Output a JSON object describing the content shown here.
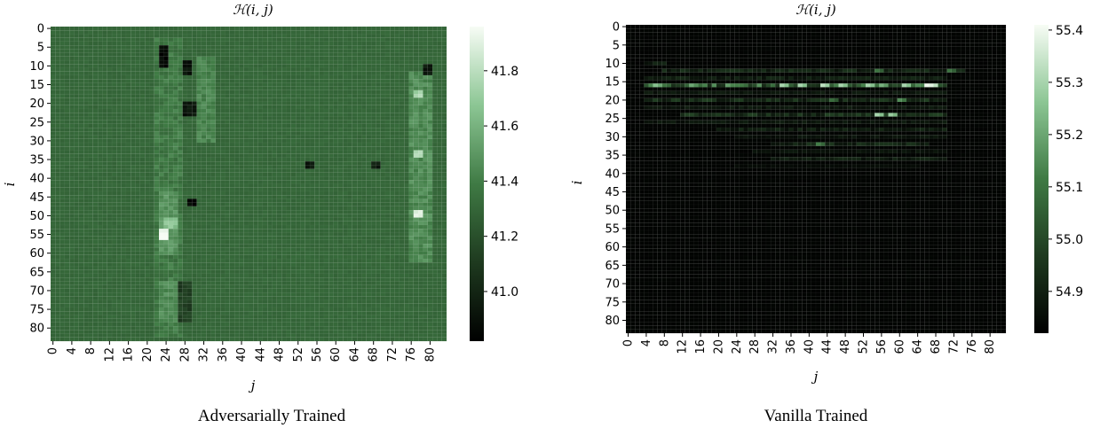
{
  "chart_data": [
    {
      "type": "heatmap",
      "title": "ℋ(i, j)",
      "caption": "Adversarially Trained",
      "xlabel": "j",
      "ylabel": "i",
      "x_ticks": [
        0,
        4,
        8,
        12,
        16,
        20,
        24,
        28,
        32,
        36,
        40,
        44,
        48,
        52,
        56,
        60,
        64,
        68,
        72,
        76,
        80
      ],
      "y_ticks": [
        0,
        5,
        10,
        15,
        20,
        25,
        30,
        35,
        40,
        45,
        50,
        55,
        60,
        65,
        70,
        75,
        80
      ],
      "grid_size": 84,
      "colorbar_ticks": [
        41.0,
        41.2,
        41.4,
        41.6,
        41.8
      ],
      "colorbar_range": [
        40.82,
        41.96
      ],
      "base_value": 41.3,
      "colormap": [
        "#000000",
        "#1e3a1f",
        "#3f7a44",
        "#8cc694",
        "#f7fcf5"
      ],
      "features": [
        {
          "i": [
            3,
            82
          ],
          "j": [
            22,
            27
          ],
          "value": 41.38
        },
        {
          "i": [
            8,
            30
          ],
          "j": [
            31,
            34
          ],
          "value": 41.42
        },
        {
          "i": [
            44,
            60
          ],
          "j": [
            23,
            26
          ],
          "value": 41.48
        },
        {
          "i": [
            68,
            78
          ],
          "j": [
            23,
            26
          ],
          "value": 41.45
        },
        {
          "i": [
            68,
            78
          ],
          "j": [
            27,
            29
          ],
          "value": 41.12
        },
        {
          "i": [
            12,
            62
          ],
          "j": [
            76,
            80
          ],
          "value": 41.45
        },
        {
          "i": [
            5,
            10
          ],
          "j": [
            23,
            24
          ],
          "value": 40.85
        },
        {
          "i": [
            9,
            12
          ],
          "j": [
            28,
            29
          ],
          "value": 40.9
        },
        {
          "i": [
            20,
            23
          ],
          "j": [
            28,
            30
          ],
          "value": 40.92
        },
        {
          "i": [
            46,
            47
          ],
          "j": [
            29,
            30
          ],
          "value": 40.88
        },
        {
          "i": [
            36,
            37
          ],
          "j": [
            54,
            55
          ],
          "value": 40.95
        },
        {
          "i": [
            36,
            37
          ],
          "j": [
            68,
            69
          ],
          "value": 40.95
        },
        {
          "i": [
            10,
            12
          ],
          "j": [
            79,
            80
          ],
          "value": 40.95
        },
        {
          "i": [
            54,
            56
          ],
          "j": [
            23,
            24
          ],
          "value": 41.95
        },
        {
          "i": [
            49,
            50
          ],
          "j": [
            77,
            78
          ],
          "value": 41.92
        },
        {
          "i": [
            33,
            34
          ],
          "j": [
            77,
            78
          ],
          "value": 41.75
        },
        {
          "i": [
            17,
            18
          ],
          "j": [
            77,
            78
          ],
          "value": 41.75
        },
        {
          "i": [
            51,
            53
          ],
          "j": [
            24,
            26
          ],
          "value": 41.65
        }
      ]
    },
    {
      "type": "heatmap",
      "title": "ℋ(i, j)",
      "caption": "Vanilla Trained",
      "xlabel": "j",
      "ylabel": "i",
      "x_ticks": [
        0,
        4,
        8,
        12,
        16,
        20,
        24,
        28,
        32,
        36,
        40,
        44,
        48,
        52,
        56,
        60,
        64,
        68,
        72,
        76,
        80
      ],
      "y_ticks": [
        0,
        5,
        10,
        15,
        20,
        25,
        30,
        35,
        40,
        45,
        50,
        55,
        60,
        65,
        70,
        75,
        80
      ],
      "grid_size": 84,
      "colorbar_ticks": [
        54.9,
        55.0,
        55.1,
        55.2,
        55.3,
        55.4
      ],
      "colorbar_range": [
        54.82,
        55.41
      ],
      "base_value": 54.83,
      "colormap": [
        "#000000",
        "#1e3a1f",
        "#3f7a44",
        "#8cc694",
        "#f7fcf5"
      ],
      "rows": [
        {
          "i": 10,
          "j": [
            4,
            8
          ],
          "value": 54.9
        },
        {
          "i": 12,
          "j": [
            8,
            74
          ],
          "value": 54.92
        },
        {
          "i": 14,
          "j": [
            4,
            70
          ],
          "value": 54.9
        },
        {
          "i": 16,
          "j": [
            4,
            70
          ],
          "value": 55.08
        },
        {
          "i": 18,
          "j": [
            4,
            70
          ],
          "value": 54.88
        },
        {
          "i": 20,
          "j": [
            4,
            70
          ],
          "value": 54.94
        },
        {
          "i": 22,
          "j": [
            4,
            70
          ],
          "value": 54.88
        },
        {
          "i": 24,
          "j": [
            12,
            70
          ],
          "value": 54.95
        },
        {
          "i": 26,
          "j": [
            4,
            70
          ],
          "value": 54.88
        },
        {
          "i": 28,
          "j": [
            20,
            70
          ],
          "value": 54.9
        },
        {
          "i": 30,
          "j": [
            24,
            70
          ],
          "value": 54.87
        },
        {
          "i": 32,
          "j": [
            32,
            66
          ],
          "value": 54.93
        },
        {
          "i": 34,
          "j": [
            28,
            70
          ],
          "value": 54.87
        },
        {
          "i": 36,
          "j": [
            32,
            70
          ],
          "value": 54.9
        },
        {
          "i": 38,
          "j": [
            24,
            64
          ],
          "value": 54.85
        }
      ],
      "hot_cells": [
        {
          "i": 16,
          "j": 6,
          "value": 55.25
        },
        {
          "i": 16,
          "j": 14,
          "value": 55.2
        },
        {
          "i": 16,
          "j": 22,
          "value": 55.18
        },
        {
          "i": 16,
          "j": 34,
          "value": 55.3
        },
        {
          "i": 16,
          "j": 38,
          "value": 55.3
        },
        {
          "i": 16,
          "j": 43,
          "value": 55.33
        },
        {
          "i": 16,
          "j": 47,
          "value": 55.3
        },
        {
          "i": 16,
          "j": 53,
          "value": 55.3
        },
        {
          "i": 16,
          "j": 56,
          "value": 55.22
        },
        {
          "i": 16,
          "j": 61,
          "value": 55.3
        },
        {
          "i": 16,
          "j": 66,
          "value": 55.4
        },
        {
          "i": 16,
          "j": 67,
          "value": 55.38
        },
        {
          "i": 12,
          "j": 71,
          "value": 55.1
        },
        {
          "i": 12,
          "j": 55,
          "value": 55.1
        },
        {
          "i": 24,
          "j": 55,
          "value": 55.3
        },
        {
          "i": 24,
          "j": 58,
          "value": 55.28
        },
        {
          "i": 20,
          "j": 60,
          "value": 55.15
        },
        {
          "i": 32,
          "j": 42,
          "value": 55.12
        },
        {
          "i": 20,
          "j": 45,
          "value": 55.08
        }
      ]
    }
  ]
}
